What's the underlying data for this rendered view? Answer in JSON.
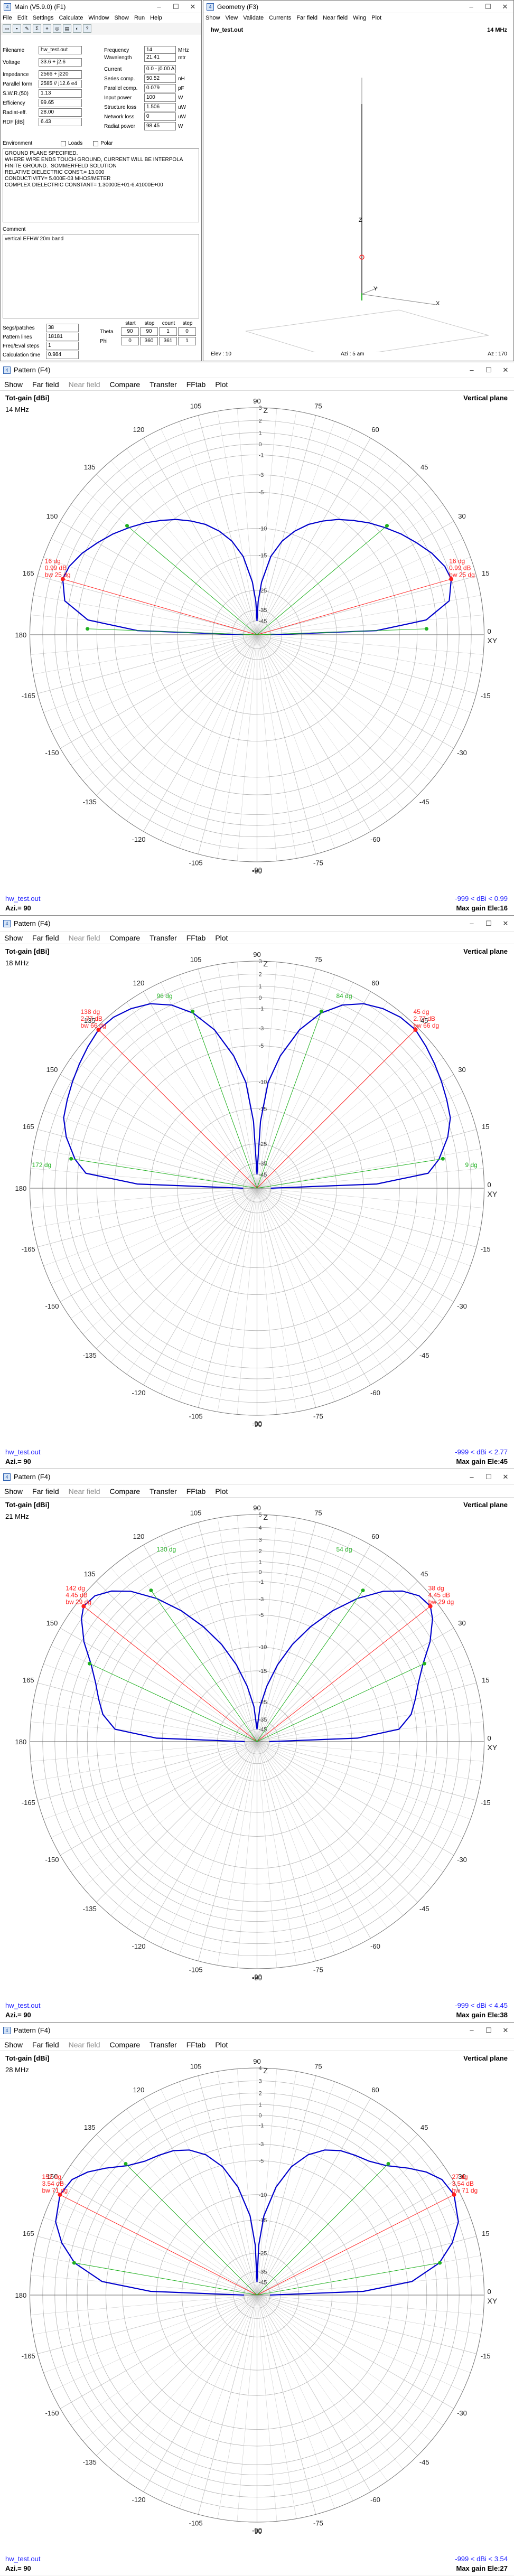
{
  "main_window": {
    "title": "Main (V5.9.0) (F1)",
    "menu": [
      "File",
      "Edit",
      "Settings",
      "Calculate",
      "Window",
      "Show",
      "Run",
      "Help"
    ],
    "fields_left": [
      {
        "label": "Filename",
        "value": "hw_test.out"
      },
      {
        "label": "Voltage",
        "value": "33.6 + j2.6"
      },
      {
        "label": "Impedance",
        "value": "2566 + j220"
      },
      {
        "label": "Parallel form",
        "value": "2585 // j12.6 e4"
      },
      {
        "label": "S.W.R.(50)",
        "value": "1.13"
      },
      {
        "label": "Efficiency",
        "value": "99.65"
      },
      {
        "label": "Radiat-eff.",
        "value": "28.00"
      },
      {
        "label": "RDF [dB]",
        "value": "6.43"
      }
    ],
    "fields_right": [
      {
        "label": "Frequency",
        "value": "14"
      },
      {
        "label": "Wavelength",
        "value": "21.41"
      },
      {
        "label": "Current",
        "value": "0.0 - j0.00 A"
      },
      {
        "label": "Series comp.",
        "value": "50.52"
      },
      {
        "label": "Parallel comp.",
        "value": "0.079"
      },
      {
        "label": "Input power",
        "value": "100"
      },
      {
        "label": "Structure loss",
        "value": "1.506"
      },
      {
        "label": "Network loss",
        "value": "0"
      },
      {
        "label": "Radiat power",
        "value": "98.45"
      }
    ],
    "units_right": [
      "MHz",
      "mtr",
      "",
      "nH",
      "pF",
      "W",
      "uW",
      "uW",
      "W"
    ],
    "environment_label": "Environment",
    "loads_label": "Loads",
    "polar_label": "Polar",
    "environment_text": "GROUND PLANE SPECIFIED.\nWHERE WIRE ENDS TOUCH GROUND, CURRENT WILL BE INTERPOLA\nFINITE GROUND.  SOMMERFELD SOLUTION\nRELATIVE DIELECTRIC CONST.= 13.000\nCONDUCTIVITY= 5.000E-03 MHOS/METER\nCOMPLEX DIELECTRIC CONSTANT= 1.30000E+01-6.41000E+00",
    "comment_label": "Comment",
    "comment_text": "vertical EFHW 20m band",
    "bottom_fields": [
      {
        "label": "Segs/patches",
        "value": "38"
      },
      {
        "label": "Pattern lines",
        "value": "18181"
      },
      {
        "label": "Freq/Eval steps",
        "value": "1"
      },
      {
        "label": "Calculation time",
        "value": "0.984"
      }
    ],
    "angle_table_header": [
      "start",
      "stop",
      "count",
      "step"
    ],
    "angle_table_rows": [
      {
        "label": "Theta",
        "values": [
          "90",
          "90",
          "1",
          "0"
        ]
      },
      {
        "label": "Phi",
        "values": [
          "0",
          "360",
          "361",
          "1"
        ]
      }
    ]
  },
  "geometry_window": {
    "title": "Geometry (F3)",
    "menu": [
      "Show",
      "View",
      "Validate",
      "Currents",
      "Far field",
      "Near field",
      "Wing",
      "Plot"
    ],
    "filename": "hw_test.out",
    "freq": "14 MHz",
    "axis_z": "Z",
    "axis_y": "Y",
    "axis_x": "X",
    "footer_left": "Elev : 10",
    "footer_mid": "Azi : 5 am",
    "footer_right": "Az : 170"
  },
  "pattern_windows": [
    {
      "title": "Pattern   (F4)",
      "menu": [
        "Show",
        "Far field",
        "Near field",
        "Compare",
        "Transfer",
        "FFtab",
        "Plot"
      ],
      "gain_label": "Tot-gain [dBi]",
      "plane": "Vertical plane",
      "freq": "14 MHz",
      "file": "hw_test.out",
      "azi": "Azi.= 90",
      "range": "-999 < dBi < 0.99",
      "max": "Max gain Ele:16",
      "ann_left": [
        "16 dg",
        "0.99 dB",
        "bw 25 dg"
      ],
      "ann_right": [
        "16 dg",
        "0.99 dB",
        "bw 25 dg"
      ],
      "ann_green_left": "",
      "ann_green_right": "",
      "chart_data": {
        "type": "polar",
        "elev_deg": [
          0,
          2,
          5,
          10,
          16,
          20,
          25,
          30,
          35,
          40,
          45,
          50,
          55,
          60,
          65,
          70,
          75,
          80,
          85,
          88,
          90
        ],
        "gain_dbi": [
          -45,
          -8,
          -2,
          0.4,
          0.99,
          0.8,
          0.2,
          -0.6,
          -1.4,
          -2.3,
          -3.2,
          -4.2,
          -5.2,
          -6.4,
          -7.7,
          -9.4,
          -11.6,
          -15,
          -22,
          -30,
          -45
        ],
        "rings_db": [
          -45,
          -35,
          -25,
          -15,
          -10,
          -5,
          -3,
          -1,
          0,
          1,
          2,
          3
        ]
      }
    },
    {
      "title": "Pattern   (F4)",
      "menu": [
        "Show",
        "Far field",
        "Near field",
        "Compare",
        "Transfer",
        "FFtab",
        "Plot"
      ],
      "gain_label": "Tot-gain [dBi]",
      "plane": "Vertical plane",
      "freq": "18 MHz",
      "file": "hw_test.out",
      "azi": "Azi.= 90",
      "range": "-999 < dBi < 2.77",
      "max": "Max gain Ele:45",
      "ann_left": [
        "138 dg",
        "2.77 dB",
        "bw 66 dg"
      ],
      "ann_right": [
        "45 dg",
        "2.77 dB",
        "bw 66 dg"
      ],
      "ann_green_left": "96 dg",
      "ann_green_right": "84 dg",
      "ann_green_left2": "172 dg",
      "ann_green_right2": "9 dg",
      "chart_data": {
        "type": "polar",
        "elev_deg": [
          0,
          2,
          5,
          9,
          15,
          20,
          25,
          30,
          35,
          40,
          45,
          50,
          55,
          60,
          65,
          70,
          75,
          80,
          84,
          87,
          90
        ],
        "gain_dbi": [
          -45,
          -8,
          -1.8,
          -0.6,
          0.6,
          1.3,
          1.6,
          1.9,
          2.2,
          2.5,
          2.77,
          2.7,
          2.4,
          1.9,
          1,
          -0.4,
          -2.6,
          -6,
          -10,
          -18,
          -45
        ],
        "rings_db": [
          -45,
          -35,
          -25,
          -15,
          -10,
          -5,
          -3,
          -1,
          0,
          1,
          2,
          3
        ]
      }
    },
    {
      "title": "Pattern   (F4)",
      "menu": [
        "Show",
        "Far field",
        "Near field",
        "Compare",
        "Transfer",
        "FFtab",
        "Plot"
      ],
      "gain_label": "Tot-gain [dBi]",
      "plane": "Vertical plane",
      "freq": "21 MHz",
      "file": "hw_test.out",
      "azi": "Azi.= 90",
      "range": "-999 < dBi < 4.45",
      "max": "Max gain Ele:38",
      "ann_left": [
        "142 dg",
        "4.45 dB",
        "bw 29 dg"
      ],
      "ann_right": [
        "38 dg",
        "4.45 dB",
        "bw 29 dg"
      ],
      "ann_green_left": "130 dg",
      "ann_green_right": "54 dg",
      "chart_data": {
        "type": "polar",
        "elev_deg": [
          0,
          2,
          5,
          10,
          15,
          20,
          25,
          30,
          35,
          38,
          42,
          46,
          50,
          55,
          60,
          65,
          70,
          75,
          80,
          85,
          90
        ],
        "gain_dbi": [
          -45,
          -9,
          -3,
          -1.4,
          -0.6,
          0.2,
          1.3,
          2.8,
          4,
          4.45,
          4.3,
          3.6,
          2.5,
          0.5,
          -2,
          -5,
          -8.5,
          -13,
          -19,
          -27,
          -45
        ],
        "rings_db": [
          -45,
          -35,
          -25,
          -15,
          -10,
          -5,
          -3,
          -1,
          0,
          1,
          2,
          3,
          4,
          5
        ]
      }
    },
    {
      "title": "Pattern   (F4)",
      "menu": [
        "Show",
        "Far field",
        "Near field",
        "Compare",
        "Transfer",
        "FFtab",
        "Plot"
      ],
      "gain_label": "Tot-gain [dBi]",
      "plane": "Vertical plane",
      "freq": "28 MHz",
      "file": "hw_test.out",
      "azi": "Azi.= 90",
      "range": "-999 < dBi < 3.54",
      "max": "Max gain Ele:27",
      "ann_left": [
        "152 dg",
        "3.54 dB",
        "bw 71 dg"
      ],
      "ann_right": [
        "27 dg",
        "3.54 dB",
        "bw 71 dg"
      ],
      "ann_green_left": "",
      "ann_green_right": "",
      "chart_data": {
        "type": "polar",
        "elev_deg": [
          0,
          2,
          5,
          10,
          15,
          20,
          27,
          32,
          36,
          40,
          45,
          50,
          55,
          60,
          65,
          70,
          75,
          80,
          85,
          88,
          90
        ],
        "gain_dbi": [
          -45,
          -9,
          -2.5,
          0.5,
          2,
          3,
          3.54,
          3.3,
          2.6,
          1.6,
          0.3,
          -0.5,
          -0.9,
          -1.3,
          -2,
          -3.2,
          -5.2,
          -8.5,
          -14,
          -22,
          -45
        ],
        "rings_db": [
          -45,
          -35,
          -25,
          -15,
          -10,
          -5,
          -3,
          -1,
          0,
          1,
          2,
          3,
          4
        ]
      }
    }
  ],
  "polar_angle_labels": [
    "0",
    "15",
    "30",
    "45",
    "60",
    "75",
    "90",
    "105",
    "120",
    "135",
    "150",
    "165",
    "180",
    "-165",
    "-150",
    "-135",
    "-120",
    "-105",
    "-90",
    "-75",
    "-60",
    "-45",
    "-30",
    "-15"
  ],
  "colors": {
    "pattern": "#0000cc",
    "red": "#ff2020",
    "green": "#20b020",
    "grid": "#b0b0b0",
    "blue_text": "#1f1fff"
  }
}
